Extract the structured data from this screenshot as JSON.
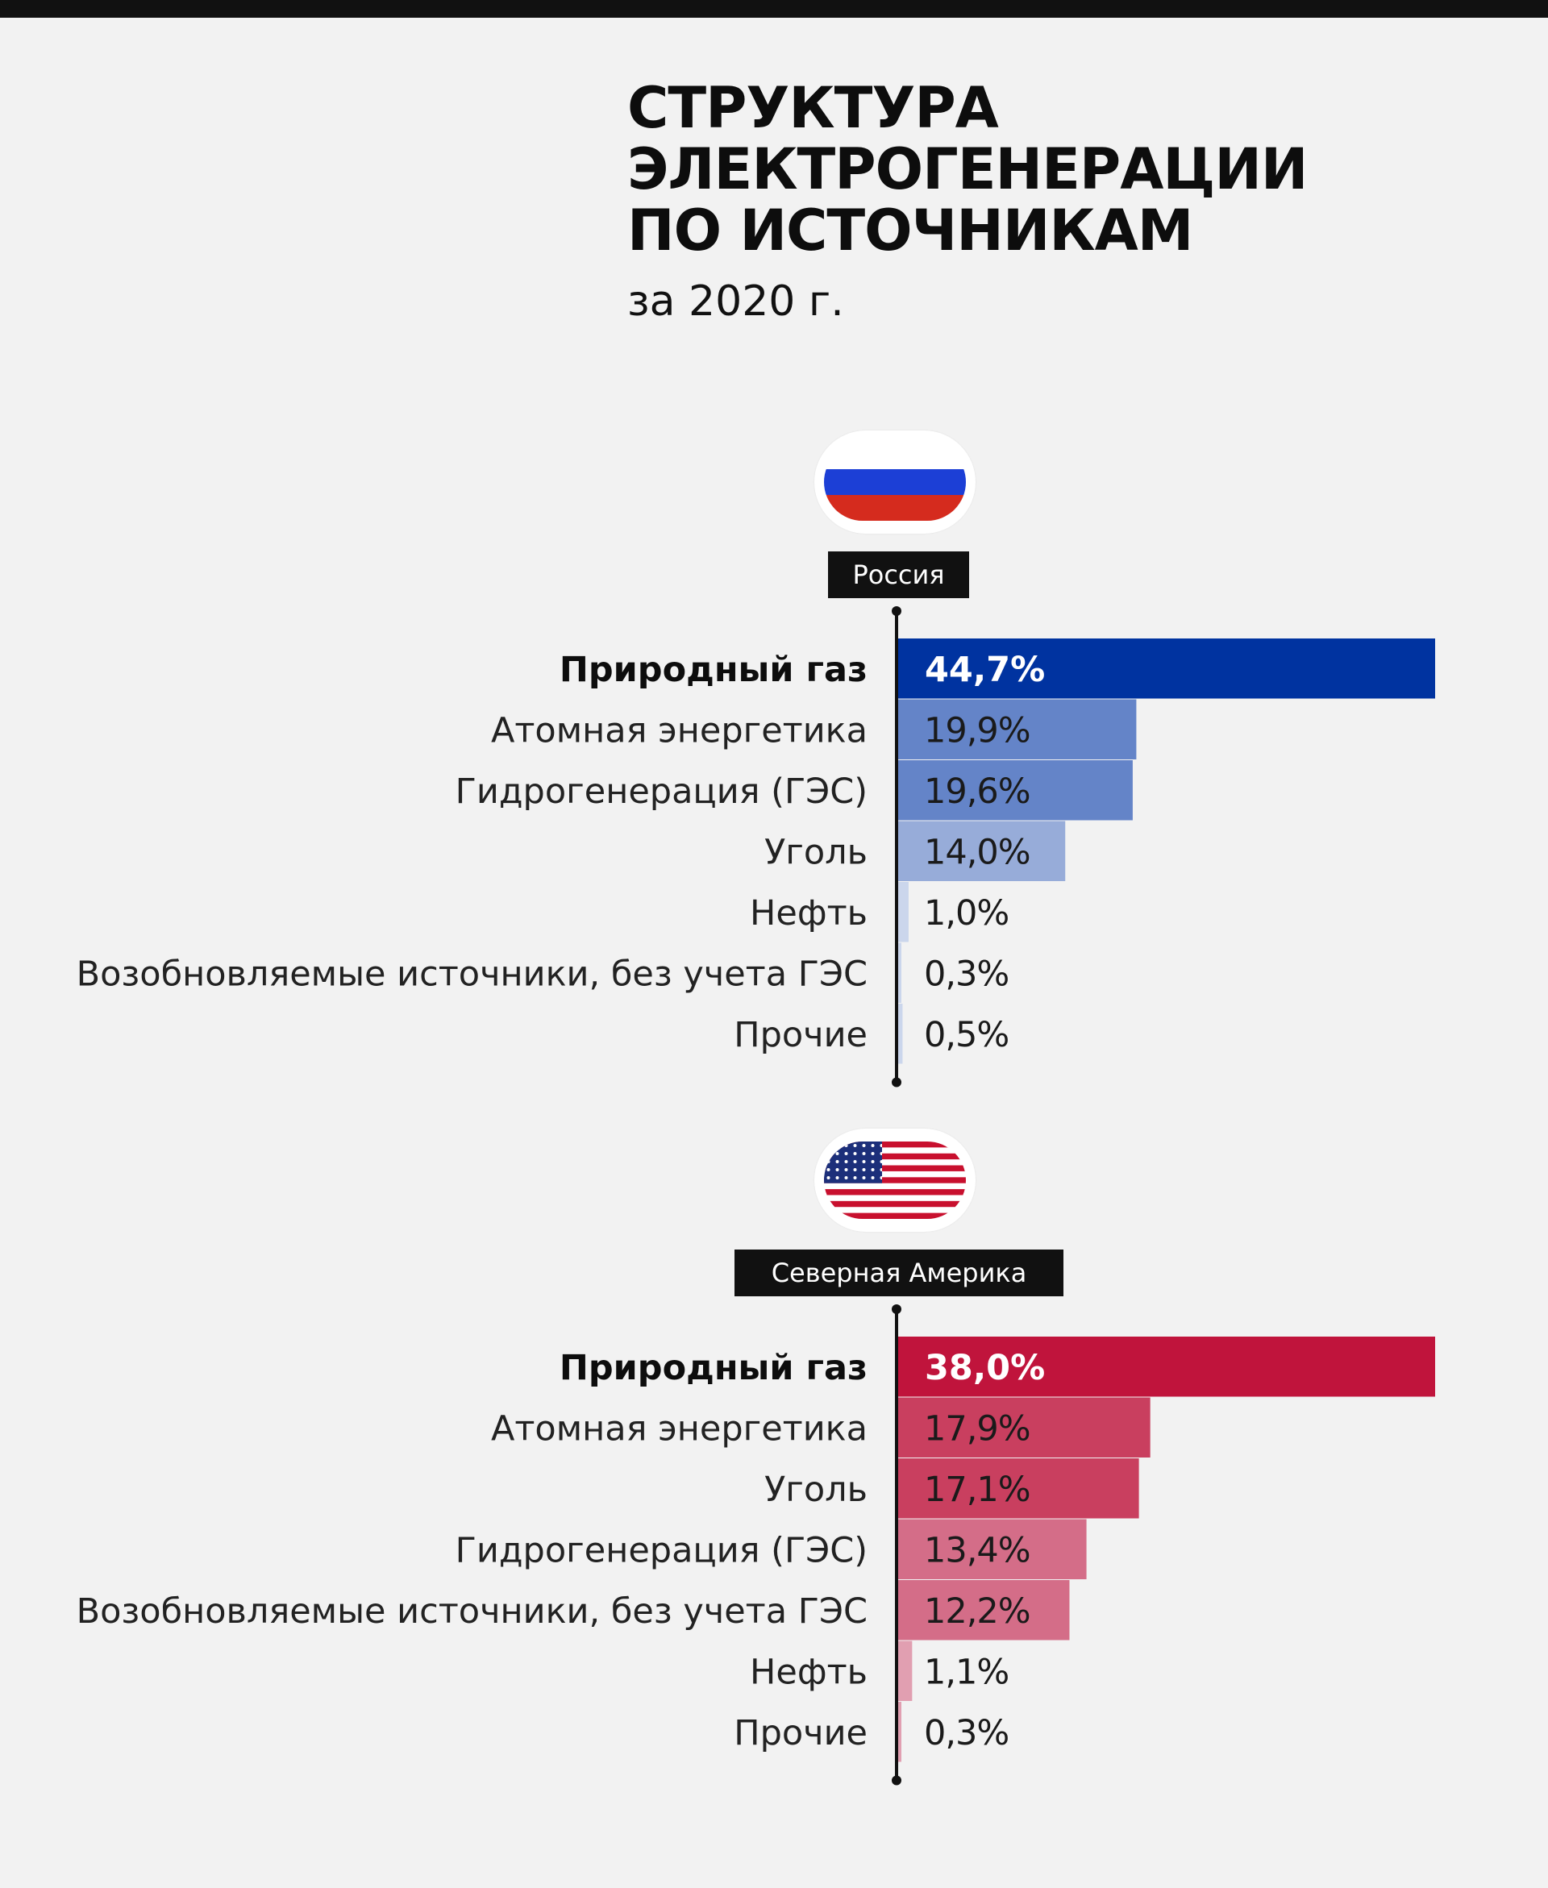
{
  "title": {
    "lines": [
      "СТРУКТУРА",
      "ЭЛЕКТРОГЕНЕРАЦИИ",
      "ПО ИСТОЧНИКАМ"
    ],
    "subtitle": "за 2020 г."
  },
  "colors": {
    "background": "#f2f2f2",
    "russia_bar": "#0033a0",
    "usa_bar": "#c0143c",
    "label_box": "#111111"
  },
  "chart_data": [
    {
      "type": "bar",
      "orientation": "horizontal",
      "title": "Россия",
      "flag_icon": "russia-flag-icon",
      "categories": [
        "Природный газ",
        "Атомная энергетика",
        "Гидрогенерация (ГЭС)",
        "Уголь",
        "Нефть",
        "Возобновляемые источники, без учета ГЭС",
        "Прочие"
      ],
      "values": [
        44.7,
        19.9,
        19.6,
        14.0,
        1.0,
        0.3,
        0.5
      ],
      "value_labels": [
        "44,7%",
        "19,9%",
        "19,6%",
        "14,0%",
        "1,0%",
        "0,3%",
        "0,5%"
      ],
      "bar_colors": [
        "#0033a0",
        "#6484c8",
        "#6484c8",
        "#97acd9",
        "#cbd6ec",
        "#cbd6ec",
        "#cbd6ec"
      ],
      "xlim": [
        0,
        44.7
      ]
    },
    {
      "type": "bar",
      "orientation": "horizontal",
      "title": "Северная Америка",
      "flag_icon": "usa-flag-icon",
      "categories": [
        "Природный газ",
        "Атомная энергетика",
        "Уголь",
        "Гидрогенерация (ГЭС)",
        "Возобновляемые источники, без учета ГЭС",
        "Нефть",
        "Прочие"
      ],
      "values": [
        38.0,
        17.9,
        17.1,
        13.4,
        12.2,
        1.1,
        0.3
      ],
      "value_labels": [
        "38,0%",
        "17,9%",
        "17,1%",
        "13,4%",
        "12,2%",
        "1,1%",
        "0,3%"
      ],
      "bar_colors": [
        "#c0143c",
        "#c93f5f",
        "#c93f5f",
        "#d46d88",
        "#d46d88",
        "#e19fb1",
        "#e19fb1"
      ],
      "xlim": [
        0,
        38.0
      ]
    }
  ]
}
